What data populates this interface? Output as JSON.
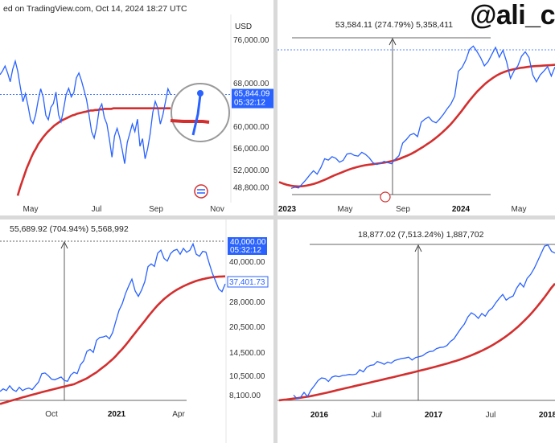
{
  "header": {
    "source": "ed on TradingView.com, Oct 14, 2024 18:27 UTC"
  },
  "brand": "@ali_c",
  "colors": {
    "price": "#2962ff",
    "ma": "#d32f2f",
    "badge": "#2962ff",
    "measure": "#333333"
  },
  "chart_data": [
    {
      "type": "line",
      "currency": "USD",
      "x_ticks": [
        "May",
        "Jul",
        "Sep",
        "Nov"
      ],
      "y_ticks": [
        "76,000.00",
        "68,000.00",
        "60,000.00",
        "56,000.00",
        "52,000.00",
        "48,800.00"
      ],
      "ylim": [
        48000,
        80000
      ],
      "badge": {
        "price": "65,844.09",
        "countdown": "05:32:12"
      },
      "annotations": [
        "hand-drawn circle highlighting the latest price crossing the moving average"
      ],
      "series": [
        {
          "values": [
            69500,
            70200,
            71100,
            69800,
            68200,
            70500,
            72000,
            70100,
            67200,
            64500,
            66000,
            63800,
            61200,
            60500,
            62100,
            64800,
            66900,
            65300,
            62000,
            61200,
            63500,
            64200,
            66300,
            62100,
            60800,
            63200,
            65900,
            67000,
            65400,
            66200,
            68900,
            69800,
            68400,
            66700,
            64900,
            62100,
            59000,
            57800,
            59900,
            63200,
            64100,
            61600,
            60400,
            57500,
            54300,
            58200,
            59600,
            58000,
            55700,
            53100,
            57000,
            58700,
            60400,
            59000,
            61300,
            56300,
            57700,
            54000,
            55800,
            58600,
            62500,
            64600,
            63300,
            60400,
            62100,
            64500,
            66900,
            65800
          ]
        },
        {
          "values": [
            47200,
            48600,
            49900,
            51100,
            52300,
            53300,
            54300,
            55200,
            55900,
            56700,
            57300,
            57900,
            58400,
            58900,
            59300,
            59700,
            60100,
            60400,
            60700,
            61000,
            61200,
            61400,
            61600,
            61800,
            62000,
            62100,
            62300,
            62400,
            62500,
            62600,
            62700,
            62800,
            62900,
            62900,
            63000,
            63000,
            63100,
            63100,
            63200,
            63200,
            63200,
            63200,
            63300,
            63300,
            63300,
            63300,
            63300,
            63300,
            63300,
            63300,
            63300,
            63300,
            63300,
            63300,
            63300,
            63300,
            63300,
            63300,
            63300,
            63300,
            63300,
            63300,
            63300,
            63300,
            63300,
            63300,
            63300,
            63300
          ]
        }
      ]
    },
    {
      "type": "line",
      "x_ticks": [
        "2023",
        "May",
        "Sep",
        "2024",
        "May"
      ],
      "y_ticks": [],
      "measurement": "53,584.11 (274.79%) 5,358,411",
      "series": [
        {
          "values": [
            16800,
            17200,
            16900,
            18500,
            20100,
            21900,
            23500,
            22200,
            24800,
            28100,
            27600,
            28900,
            28300,
            26800,
            27500,
            29900,
            30200,
            29400,
            29100,
            30600,
            29800,
            28500,
            26600,
            25900,
            26300,
            27100,
            26600,
            26200,
            27900,
            29300,
            34100,
            35500,
            37200,
            37800,
            36600,
            42100,
            43300,
            44100,
            42500,
            41900,
            43400,
            45200,
            47300,
            49100,
            52100,
            61600,
            63100,
            65900,
            70000,
            71300,
            69200,
            66800,
            63700,
            65300,
            68100,
            70800,
            67000,
            69700,
            65200,
            58900,
            61800,
            63700,
            67400,
            69100,
            66900,
            60300,
            57600,
            60200,
            61700,
            63400,
            59800,
            63300
          ]
        },
        {
          "values": [
            19200,
            18600,
            18100,
            17800,
            17600,
            17500,
            17600,
            17800,
            18100,
            18500,
            19000,
            19600,
            20200,
            20900,
            21600,
            22200,
            22800,
            23400,
            24000,
            24500,
            24900,
            25300,
            25600,
            25800,
            26000,
            26200,
            26400,
            26600,
            26900,
            27200,
            27600,
            28100,
            28700,
            29300,
            30000,
            30800,
            31700,
            32600,
            33600,
            34600,
            35700,
            36900,
            38200,
            39600,
            41100,
            42800,
            44600,
            46500,
            48500,
            50400,
            52200,
            53900,
            55400,
            56800,
            58000,
            59100,
            60000,
            60800,
            61400,
            61900,
            62300,
            62600,
            62900,
            63100,
            63300,
            63500,
            63600,
            63700,
            63800,
            63900,
            64000,
            64100
          ]
        }
      ]
    },
    {
      "type": "line",
      "x_ticks": [
        "Oct",
        "2021",
        "Apr"
      ],
      "y_ticks": [
        "40,000.00",
        "28,000.00",
        "20,500.00",
        "14,500.00",
        "10,500.00",
        "8,100.00"
      ],
      "measurement": "55,689.92 (704.94%) 5,568,992",
      "badge": {
        "price": "40,000.00",
        "countdown": "05:32:12",
        "current": "37,401.73"
      },
      "series": [
        {
          "values": [
            9200,
            9500,
            9300,
            9900,
            9400,
            9200,
            9700,
            9300,
            9500,
            9600,
            9400,
            9900,
            10400,
            11600,
            11700,
            11300,
            10800,
            10700,
            10900,
            11100,
            10600,
            10500,
            11400,
            11800,
            11600,
            13000,
            13700,
            15500,
            15900,
            15300,
            17900,
            18600,
            18700,
            19000,
            18300,
            19800,
            23000,
            26500,
            28900,
            32900,
            36400,
            39800,
            34200,
            31800,
            34500,
            38500,
            46900,
            48600,
            47000,
            55800,
            58100,
            52100,
            50400,
            55500,
            57800,
            58700,
            55100,
            59500,
            56500,
            58000,
            63000,
            55100,
            53700,
            57200,
            56600,
            49100,
            43000,
            38800,
            35000,
            33800,
            37400
          ]
        },
        {
          "values": [
            7800,
            7900,
            8000,
            8100,
            8200,
            8300,
            8400,
            8500,
            8600,
            8700,
            8800,
            8900,
            9000,
            9100,
            9200,
            9300,
            9400,
            9500,
            9600,
            9700,
            9800,
            9900,
            10000,
            10100,
            10300,
            10500,
            10700,
            10900,
            11200,
            11500,
            11800,
            12200,
            12600,
            13000,
            13500,
            14000,
            14600,
            15300,
            16000,
            16800,
            17700,
            18700,
            19700,
            20800,
            21900,
            23100,
            24400,
            25700,
            27000,
            28300,
            29500,
            30700,
            31800,
            32800,
            33800,
            34700,
            35500,
            36300,
            37000,
            37700,
            38300,
            38900,
            39400,
            39800,
            40200,
            40500,
            40800,
            41000,
            41100,
            41200,
            41300
          ]
        }
      ]
    },
    {
      "type": "line",
      "x_ticks": [
        "2016",
        "Jul",
        "2017",
        "Jul",
        "2018"
      ],
      "y_ticks": [],
      "measurement": "18,877.02 (7,513.24%) 1,887,702",
      "series": [
        {
          "values": [
            250,
            225,
            235,
            270,
            240,
            290,
            330,
            380,
            410,
            405,
            370,
            420,
            435,
            425,
            440,
            445,
            455,
            450,
            460,
            520,
            490,
            560,
            590,
            600,
            660,
            640,
            610,
            650,
            630,
            680,
            700,
            720,
            730,
            750,
            690,
            740,
            760,
            780,
            840,
            880,
            890,
            960,
            990,
            1000,
            1050,
            1180,
            1270,
            1480,
            1720,
            1950,
            2400,
            2700,
            2550,
            2300,
            2650,
            2450,
            2870,
            3100,
            3600,
            4100,
            4600,
            3900,
            4200,
            4400,
            5500,
            6400,
            5700,
            7300,
            8200,
            9700,
            12000,
            15000,
            18600,
            19200,
            16000,
            15200
          ]
        },
        {
          "values": [
            215,
            218,
            220,
            223,
            226,
            229,
            232,
            236,
            240,
            245,
            250,
            256,
            262,
            268,
            275,
            282,
            290,
            297,
            305,
            312,
            320,
            328,
            336,
            345,
            353,
            362,
            371,
            380,
            390,
            400,
            410,
            420,
            431,
            442,
            453,
            465,
            477,
            490,
            503,
            516,
            530,
            545,
            560,
            576,
            593,
            611,
            630,
            650,
            671,
            694,
            720,
            750,
            782,
            817,
            855,
            897,
            945,
            1000,
            1060,
            1130,
            1210,
            1300,
            1400,
            1520,
            1660,
            1820,
            2010,
            2230,
            2490,
            2800,
            3170,
            3620,
            4150,
            4800,
            5550,
            6300
          ]
        }
      ]
    }
  ]
}
